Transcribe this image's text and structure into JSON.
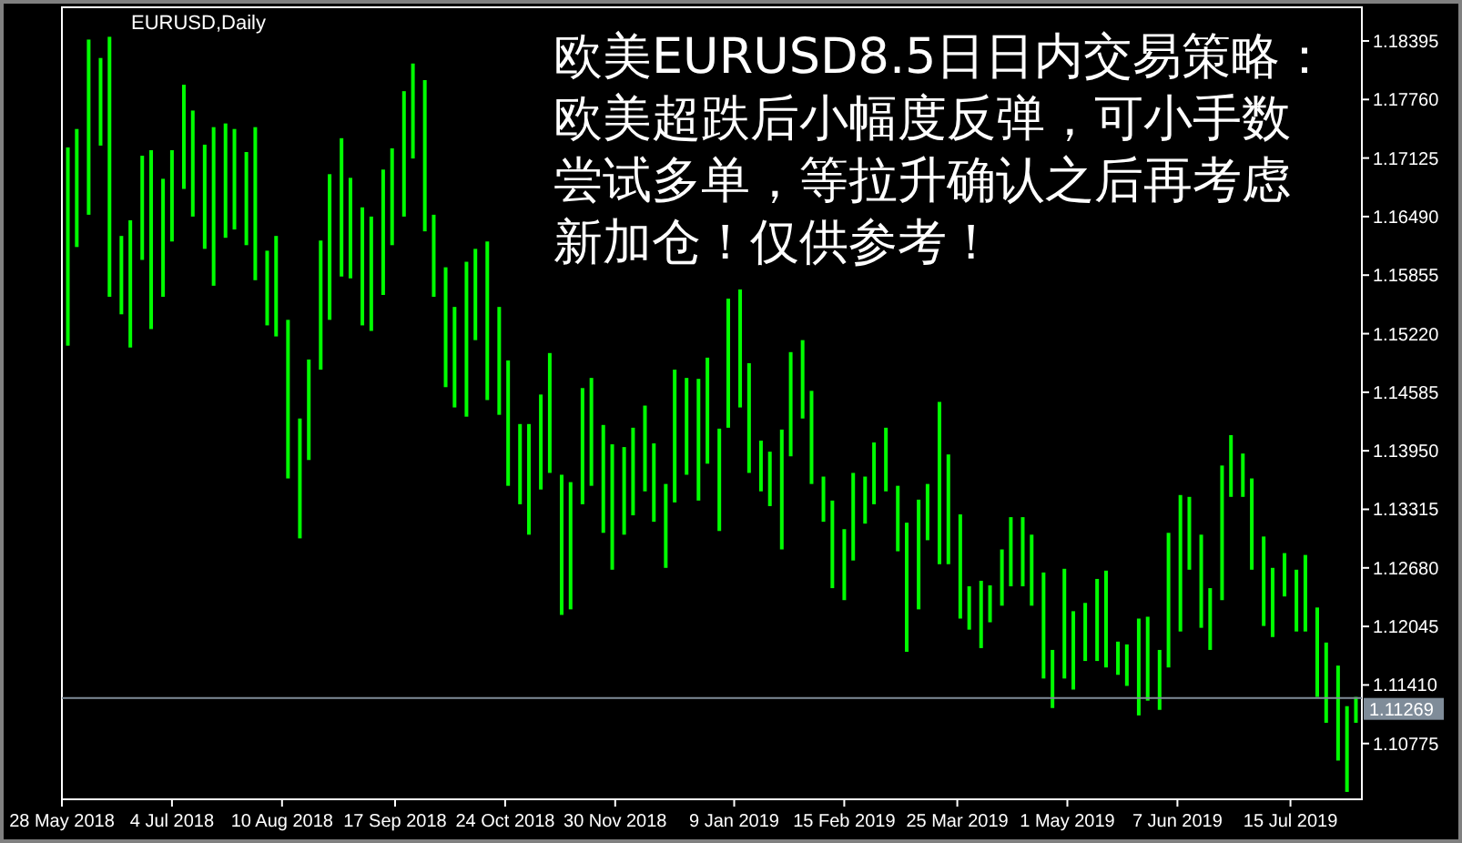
{
  "chart_data": {
    "type": "bar",
    "title": "EURUSD,Daily",
    "annotations": [
      "欧美EURUSD8.5日日内交易策略：欧美超跌后小幅度反弹，可小手数尝试多单，等拉升确认之后再考虑新加仓！仅供参考！"
    ],
    "x": [
      "2018-05-30",
      "2018-06-02",
      "2018-06-06",
      "2018-06-10",
      "2018-06-13",
      "2018-06-17",
      "2018-06-20",
      "2018-06-24",
      "2018-06-27",
      "2018-07-01",
      "2018-07-04",
      "2018-07-08",
      "2018-07-11",
      "2018-07-15",
      "2018-07-18",
      "2018-07-22",
      "2018-07-25",
      "2018-07-29",
      "2018-08-01",
      "2018-08-05",
      "2018-08-08",
      "2018-08-12",
      "2018-08-16",
      "2018-08-19",
      "2018-08-23",
      "2018-08-26",
      "2018-08-30",
      "2018-09-02",
      "2018-09-06",
      "2018-09-09",
      "2018-09-13",
      "2018-09-16",
      "2018-09-20",
      "2018-09-23",
      "2018-09-27",
      "2018-09-30",
      "2018-10-04",
      "2018-10-07",
      "2018-10-11",
      "2018-10-14",
      "2018-10-18",
      "2018-10-22",
      "2018-10-25",
      "2018-10-29",
      "2018-11-01",
      "2018-11-05",
      "2018-11-08",
      "2018-11-12",
      "2018-11-15",
      "2018-11-19",
      "2018-11-22",
      "2018-11-26",
      "2018-11-29",
      "2018-12-03",
      "2018-12-06",
      "2018-12-10",
      "2018-12-13",
      "2018-12-17",
      "2018-12-20",
      "2018-12-24",
      "2018-12-28",
      "2018-12-31",
      "2019-01-04",
      "2019-01-07",
      "2019-01-11",
      "2019-01-14",
      "2019-01-18",
      "2019-01-21",
      "2019-01-25",
      "2019-01-28",
      "2019-02-01",
      "2019-02-04",
      "2019-02-08",
      "2019-02-11",
      "2019-02-15",
      "2019-02-18",
      "2019-02-22",
      "2019-02-25",
      "2019-03-01",
      "2019-03-05",
      "2019-03-08",
      "2019-03-12",
      "2019-03-15",
      "2019-03-19",
      "2019-03-22",
      "2019-03-26",
      "2019-03-29",
      "2019-04-02",
      "2019-04-05",
      "2019-04-09",
      "2019-04-12",
      "2019-04-16",
      "2019-04-19",
      "2019-04-23",
      "2019-04-26",
      "2019-04-30",
      "2019-05-03",
      "2019-05-07",
      "2019-05-11",
      "2019-05-14",
      "2019-05-18",
      "2019-05-21",
      "2019-05-25",
      "2019-05-28",
      "2019-06-01",
      "2019-06-04",
      "2019-06-08",
      "2019-06-11",
      "2019-06-15",
      "2019-06-18",
      "2019-06-22",
      "2019-06-25",
      "2019-06-29",
      "2019-07-02",
      "2019-07-06",
      "2019-07-09",
      "2019-07-13",
      "2019-07-17",
      "2019-07-20",
      "2019-07-24",
      "2019-07-27",
      "2019-07-31",
      "2019-08-03",
      "2019-08-06"
    ],
    "base": [
      1.1509,
      1.1616,
      1.1651,
      1.1726,
      1.1562,
      1.1543,
      1.1507,
      1.1602,
      1.1527,
      1.1562,
      1.1622,
      1.1679,
      1.1649,
      1.1614,
      1.1574,
      1.1626,
      1.1635,
      1.1618,
      1.158,
      1.1531,
      1.1519,
      1.1365,
      1.13,
      1.1385,
      1.1483,
      1.1537,
      1.1584,
      1.1582,
      1.1531,
      1.1525,
      1.1564,
      1.1618,
      1.1649,
      1.1712,
      1.1633,
      1.1562,
      1.1464,
      1.1442,
      1.1432,
      1.1515,
      1.145,
      1.1434,
      1.1357,
      1.1337,
      1.1304,
      1.1353,
      1.1371,
      1.1217,
      1.1223,
      1.1337,
      1.1357,
      1.1306,
      1.1266,
      1.1304,
      1.1325,
      1.1351,
      1.1318,
      1.1268,
      1.1339,
      1.1369,
      1.1341,
      1.1381,
      1.1308,
      1.142,
      1.1442,
      1.1371,
      1.1351,
      1.1335,
      1.1288,
      1.1389,
      1.143,
      1.1359,
      1.1318,
      1.1246,
      1.1233,
      1.1276,
      1.1316,
      1.1337,
      1.1351,
      1.1286,
      1.1177,
      1.1223,
      1.1298,
      1.1272,
      1.1272,
      1.1213,
      1.1201,
      1.1181,
      1.1209,
      1.1227,
      1.1248,
      1.1248,
      1.1227,
      1.1148,
      1.1116,
      1.1148,
      1.1136,
      1.1167,
      1.1167,
      1.116,
      1.1152,
      1.114,
      1.1108,
      1.1124,
      1.1114,
      1.116,
      1.1199,
      1.1266,
      1.1203,
      1.1179,
      1.1233,
      1.1345,
      1.1345,
      1.1266,
      1.1205,
      1.1193,
      1.1237,
      1.1199,
      1.1199,
      1.1128,
      1.11,
      1.1059,
      1.1025,
      1.11
    ],
    "values": [
      0.0215,
      0.0128,
      0.019,
      0.0095,
      0.0282,
      0.0085,
      0.0138,
      0.0113,
      0.0194,
      0.0128,
      0.0099,
      0.0113,
      0.0115,
      0.0113,
      0.0172,
      0.0124,
      0.0109,
      0.0101,
      0.0166,
      0.0081,
      0.0109,
      0.0172,
      0.013,
      0.0109,
      0.014,
      0.0158,
      0.015,
      0.0109,
      0.0128,
      0.0124,
      0.0136,
      0.0105,
      0.0136,
      0.0103,
      0.0164,
      0.0089,
      0.013,
      0.0109,
      0.0168,
      0.0099,
      0.0172,
      0.0117,
      0.0136,
      0.0087,
      0.012,
      0.0103,
      0.013,
      0.0152,
      0.0138,
      0.0126,
      0.0117,
      0.0117,
      0.0136,
      0.0095,
      0.0095,
      0.0093,
      0.0085,
      0.0091,
      0.0144,
      0.0105,
      0.0132,
      0.0115,
      0.0111,
      0.014,
      0.0128,
      0.0119,
      0.0055,
      0.0059,
      0.013,
      0.0113,
      0.0085,
      0.0101,
      0.0049,
      0.0095,
      0.0077,
      0.0095,
      0.0051,
      0.0067,
      0.0069,
      0.0071,
      0.014,
      0.0119,
      0.0061,
      0.0176,
      0.0119,
      0.0113,
      0.0047,
      0.0073,
      0.004,
      0.0061,
      0.0075,
      0.0075,
      0.0077,
      0.0115,
      0.0063,
      0.0119,
      0.0085,
      0.0063,
      0.0089,
      0.0105,
      0.0036,
      0.0045,
      0.0105,
      0.0091,
      0.0065,
      0.0146,
      0.0148,
      0.0079,
      0.0101,
      0.0067,
      0.0146,
      0.0067,
      0.0047,
      0.0099,
      0.0097,
      0.0075,
      0.0047,
      0.0067,
      0.0083,
      0.0097,
      0.0087,
      0.0103,
      0.0093,
      0.0028
    ],
    "color": "#00ff00",
    "xlim": [
      "2018-05-28",
      "2019-08-08"
    ],
    "xticks": [
      {
        "value": "2018-05-28",
        "label": "28 May 2018"
      },
      {
        "value": "2018-07-04",
        "label": "4 Jul 2018"
      },
      {
        "value": "2018-08-10",
        "label": "10 Aug 2018"
      },
      {
        "value": "2018-09-17",
        "label": "17 Sep 2018"
      },
      {
        "value": "2018-10-24",
        "label": "24 Oct 2018"
      },
      {
        "value": "2018-11-30",
        "label": "30 Nov 2018"
      },
      {
        "value": "2019-01-09",
        "label": "9 Jan 2019"
      },
      {
        "value": "2019-02-15",
        "label": "15 Feb 2019"
      },
      {
        "value": "2019-03-25",
        "label": "25 Mar 2019"
      },
      {
        "value": "2019-05-01",
        "label": "1 May 2019"
      },
      {
        "value": "2019-06-07",
        "label": "7 Jun 2019"
      },
      {
        "value": "2019-07-15",
        "label": "15 Jul 2019"
      }
    ],
    "ylim": [
      1.1017,
      1.1876
    ],
    "yticks": [
      1.18395,
      {
        "value": 1.1776,
        "label": "1.17760"
      },
      1.17125,
      {
        "value": 1.1649,
        "label": "1.16490"
      },
      1.15855,
      {
        "value": 1.1522,
        "label": "1.15220"
      },
      1.14585,
      {
        "value": 1.1395,
        "label": "1.13950"
      },
      1.13315,
      {
        "value": 1.1268,
        "label": "1.12680"
      },
      1.12045,
      {
        "value": 1.1141,
        "label": "1.11410"
      },
      1.10775
    ],
    "ref_lines": [
      {
        "axis": "y",
        "value": 1.11269,
        "label": "1.11269",
        "color": "#7f8c99"
      }
    ]
  }
}
